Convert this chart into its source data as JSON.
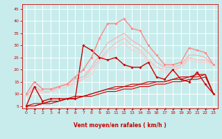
{
  "title": "",
  "xlabel": "Vent moyen/en rafales ( km/h )",
  "ylabel": "",
  "xlim": [
    -0.5,
    23.5
  ],
  "ylim": [
    4,
    47
  ],
  "yticks": [
    5,
    10,
    15,
    20,
    25,
    30,
    35,
    40,
    45
  ],
  "xticks": [
    0,
    1,
    2,
    3,
    4,
    5,
    6,
    7,
    8,
    9,
    10,
    11,
    12,
    13,
    14,
    15,
    16,
    17,
    18,
    19,
    20,
    21,
    22,
    23
  ],
  "background_color": "#c8ecec",
  "grid_color": "#b0d8d8",
  "series": [
    {
      "x": [
        0,
        1,
        2,
        3,
        4,
        5,
        6,
        7,
        8,
        9,
        10,
        11,
        12,
        13,
        14,
        15,
        16,
        17,
        18,
        19,
        20,
        21,
        22,
        23
      ],
      "y": [
        5,
        13,
        7,
        8,
        8,
        8,
        8,
        30,
        28,
        25,
        24,
        25,
        22,
        21,
        21,
        23,
        17,
        16,
        20,
        16,
        15,
        19,
        14,
        10
      ],
      "color": "#cc0000",
      "lw": 1.0,
      "marker": "D",
      "ms": 2.0
    },
    {
      "x": [
        0,
        1,
        2,
        3,
        4,
        5,
        6,
        7,
        8,
        9,
        10,
        11,
        12,
        13,
        14,
        15,
        16,
        17,
        18,
        19,
        20,
        21,
        22,
        23
      ],
      "y": [
        5,
        6,
        6,
        7,
        7,
        8,
        8,
        9,
        10,
        11,
        12,
        13,
        13,
        14,
        14,
        15,
        15,
        15,
        16,
        17,
        17,
        18,
        18,
        10
      ],
      "color": "#cc0000",
      "lw": 0.8,
      "marker": null,
      "ms": 0
    },
    {
      "x": [
        0,
        1,
        2,
        3,
        4,
        5,
        6,
        7,
        8,
        9,
        10,
        11,
        12,
        13,
        14,
        15,
        16,
        17,
        18,
        19,
        20,
        21,
        22,
        23
      ],
      "y": [
        5,
        5,
        6,
        7,
        7,
        8,
        9,
        9,
        10,
        11,
        12,
        12,
        13,
        13,
        14,
        14,
        15,
        15,
        16,
        16,
        17,
        17,
        18,
        10
      ],
      "color": "#cc0000",
      "lw": 0.8,
      "marker": null,
      "ms": 0
    },
    {
      "x": [
        0,
        1,
        2,
        3,
        4,
        5,
        6,
        7,
        8,
        9,
        10,
        11,
        12,
        13,
        14,
        15,
        16,
        17,
        18,
        19,
        20,
        21,
        22,
        23
      ],
      "y": [
        5,
        5,
        6,
        6,
        7,
        8,
        8,
        9,
        9,
        10,
        11,
        11,
        12,
        12,
        13,
        13,
        14,
        14,
        15,
        15,
        16,
        16,
        17,
        10
      ],
      "color": "#cc0000",
      "lw": 0.8,
      "marker": null,
      "ms": 0
    },
    {
      "x": [
        0,
        1,
        2,
        3,
        4,
        5,
        6,
        7,
        8,
        9,
        10,
        11,
        12,
        13,
        14,
        15,
        16,
        17,
        18,
        19,
        20,
        21,
        22,
        23
      ],
      "y": [
        10,
        15,
        12,
        12,
        13,
        14,
        17,
        20,
        25,
        33,
        39,
        39,
        41,
        37,
        36,
        30,
        26,
        22,
        22,
        23,
        29,
        28,
        27,
        22
      ],
      "color": "#ff8888",
      "lw": 1.0,
      "marker": "D",
      "ms": 2.0
    },
    {
      "x": [
        0,
        1,
        2,
        3,
        4,
        5,
        6,
        7,
        8,
        9,
        10,
        11,
        12,
        13,
        14,
        15,
        16,
        17,
        18,
        19,
        20,
        21,
        22,
        23
      ],
      "y": [
        9,
        13,
        11,
        11,
        13,
        14,
        16,
        17,
        21,
        26,
        31,
        33,
        35,
        32,
        30,
        27,
        23,
        21,
        21,
        22,
        26,
        26,
        25,
        22
      ],
      "color": "#ffaaaa",
      "lw": 0.8,
      "marker": null,
      "ms": 0
    },
    {
      "x": [
        0,
        1,
        2,
        3,
        4,
        5,
        6,
        7,
        8,
        9,
        10,
        11,
        12,
        13,
        14,
        15,
        16,
        17,
        18,
        19,
        20,
        21,
        22,
        23
      ],
      "y": [
        9,
        12,
        11,
        11,
        12,
        13,
        15,
        16,
        20,
        24,
        28,
        31,
        33,
        30,
        28,
        24,
        21,
        20,
        20,
        21,
        25,
        24,
        24,
        22
      ],
      "color": "#ffbbbb",
      "lw": 0.8,
      "marker": null,
      "ms": 0
    },
    {
      "x": [
        0,
        1,
        2,
        3,
        4,
        5,
        6,
        7,
        8,
        9,
        10,
        11,
        12,
        13,
        14,
        15,
        16,
        17,
        18,
        19,
        20,
        21,
        22,
        23
      ],
      "y": [
        9,
        12,
        10,
        11,
        12,
        13,
        14,
        16,
        18,
        23,
        27,
        29,
        31,
        28,
        27,
        23,
        21,
        19,
        19,
        21,
        24,
        23,
        23,
        22
      ],
      "color": "#ffcccc",
      "lw": 0.8,
      "marker": null,
      "ms": 0
    }
  ]
}
